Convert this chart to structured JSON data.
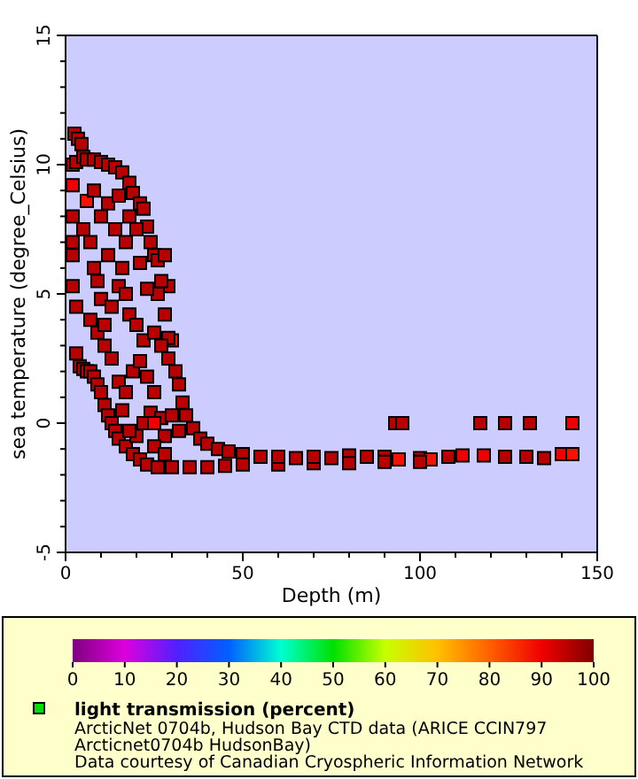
{
  "chart_data": {
    "type": "scatter",
    "xlabel": "Depth (m)",
    "ylabel": "sea temperature (degree_Celsius)",
    "clabel": "light transmission (percent)",
    "marker": "square",
    "grid": false,
    "xlim": [
      0,
      150
    ],
    "ylim": [
      -5,
      15
    ],
    "xticks": [
      0,
      {
        "value": 10,
        "label": null
      },
      {
        "value": 20,
        "label": null
      },
      {
        "value": 30,
        "label": null
      },
      {
        "value": 40,
        "label": null
      },
      50,
      {
        "value": 60,
        "label": null
      },
      {
        "value": 70,
        "label": null
      },
      {
        "value": 80,
        "label": null
      },
      {
        "value": 90,
        "label": null
      },
      100,
      {
        "value": 110,
        "label": null
      },
      {
        "value": 120,
        "label": null
      },
      {
        "value": 130,
        "label": null
      },
      {
        "value": 140,
        "label": null
      },
      150
    ],
    "yticks": [
      -5,
      {
        "value": -4,
        "label": null
      },
      {
        "value": -3,
        "label": null
      },
      {
        "value": -2,
        "label": null
      },
      {
        "value": -1,
        "label": null
      },
      0,
      {
        "value": 1,
        "label": null
      },
      {
        "value": 2,
        "label": null
      },
      {
        "value": 3,
        "label": null
      },
      {
        "value": 4,
        "label": null
      },
      5,
      {
        "value": 6,
        "label": null
      },
      {
        "value": 7,
        "label": null
      },
      {
        "value": 8,
        "label": null
      },
      {
        "value": 9,
        "label": null
      },
      10,
      {
        "value": 11,
        "label": null
      },
      {
        "value": 12,
        "label": null
      },
      {
        "value": 13,
        "label": null
      },
      {
        "value": 14,
        "label": null
      },
      15
    ],
    "clim": [
      0,
      100
    ],
    "cticks": [
      0,
      10,
      20,
      30,
      40,
      50,
      60,
      70,
      80,
      90,
      100
    ],
    "annotations": [
      "ArcticNet 0704b, Hudson Bay CTD data (ARICE CCIN797",
      "Arcticnet0704b HudsonBay)",
      "Data courtesy of Canadian Cryospheric Information Network"
    ],
    "series": [
      {
        "x": [
          2.5,
          3.5,
          4.5,
          2,
          3,
          5,
          6,
          8,
          10,
          12,
          14,
          16,
          18,
          19,
          21,
          22,
          23,
          24,
          25,
          26,
          28,
          29,
          27,
          28,
          26,
          30,
          29,
          31,
          32,
          33,
          34,
          36,
          38,
          40,
          43,
          46,
          50,
          2,
          2,
          2,
          2,
          2,
          3,
          3,
          4,
          5,
          6,
          7,
          8,
          9,
          10,
          11,
          12,
          13,
          14,
          15,
          17,
          19,
          21,
          23,
          26,
          30,
          35,
          40,
          45,
          50,
          60,
          70,
          6,
          5,
          7,
          8,
          9,
          10,
          7,
          9,
          11,
          13,
          15,
          12,
          14,
          16,
          17,
          18,
          20,
          22,
          19,
          21,
          23,
          25,
          24,
          22,
          20,
          18,
          16,
          15,
          17,
          27,
          28,
          30,
          32,
          25,
          28,
          13,
          11,
          10,
          8,
          12,
          15,
          18,
          20,
          17,
          21,
          23,
          25,
          27,
          29,
          25,
          55,
          60,
          65,
          70,
          75,
          80,
          85,
          90,
          94,
          100,
          103,
          108,
          112,
          118,
          124,
          130,
          135,
          140,
          143,
          80,
          90,
          100,
          93,
          95,
          117,
          124,
          131,
          143
        ],
        "values": [
          11.2,
          11.0,
          10.8,
          10.0,
          10.1,
          10.3,
          10.2,
          10.2,
          10.1,
          10.0,
          9.9,
          9.7,
          9.3,
          8.9,
          8.5,
          8.3,
          7.6,
          7.0,
          6.5,
          6.3,
          6.5,
          5.3,
          5.5,
          4.2,
          5.0,
          3.2,
          3.3,
          2.0,
          1.5,
          0.8,
          0.3,
          -0.2,
          -0.6,
          -0.8,
          -1.0,
          -1.1,
          -1.2,
          9.2,
          8.0,
          7.0,
          6.5,
          5.3,
          4.5,
          2.7,
          2.2,
          2.1,
          2.0,
          2.0,
          1.8,
          1.5,
          1.2,
          0.7,
          0.3,
          0.0,
          -0.3,
          -0.6,
          -0.9,
          -1.2,
          -1.4,
          -1.6,
          -1.7,
          -1.7,
          -1.7,
          -1.7,
          -1.65,
          -1.6,
          -1.6,
          -1.55,
          8.6,
          7.5,
          7.0,
          6.0,
          5.5,
          4.8,
          4.0,
          3.5,
          3.8,
          4.5,
          5.3,
          6.5,
          7.5,
          6.0,
          5.0,
          4.2,
          3.8,
          3.2,
          2.0,
          2.4,
          1.8,
          1.2,
          0.4,
          0.0,
          -0.5,
          -0.3,
          0.5,
          1.6,
          1.2,
          0.2,
          -0.5,
          0.3,
          -0.3,
          -0.9,
          -1.2,
          2.5,
          3.0,
          8.0,
          9.0,
          8.5,
          8.8,
          8.0,
          7.5,
          7.0,
          6.2,
          5.2,
          3.5,
          3.0,
          2.5,
          0.0,
          -1.3,
          -1.3,
          -1.35,
          -1.3,
          -1.35,
          -1.25,
          -1.3,
          -1.3,
          -1.4,
          -1.35,
          -1.4,
          -1.3,
          -1.25,
          -1.25,
          -1.3,
          -1.3,
          -1.35,
          -1.2,
          -1.2,
          -1.55,
          -1.5,
          -1.5,
          0,
          0,
          0,
          0,
          0,
          0
        ],
        "cvalues": [
          95,
          95,
          95,
          95,
          95,
          95,
          95,
          95,
          95,
          95,
          95,
          95,
          95,
          95,
          95,
          95,
          95,
          95,
          95,
          95,
          95,
          95,
          95,
          95,
          95,
          88,
          95,
          95,
          95,
          95,
          95,
          95,
          95,
          95,
          95,
          95,
          95,
          90,
          95,
          95,
          95,
          95,
          95,
          95,
          95,
          95,
          95,
          95,
          95,
          95,
          95,
          95,
          95,
          95,
          95,
          95,
          95,
          95,
          95,
          95,
          95,
          95,
          95,
          95,
          95,
          95,
          95,
          95,
          88,
          95,
          95,
          95,
          95,
          95,
          95,
          95,
          95,
          95,
          95,
          95,
          95,
          95,
          95,
          95,
          95,
          95,
          95,
          95,
          95,
          95,
          95,
          95,
          95,
          95,
          95,
          95,
          95,
          95,
          95,
          95,
          95,
          95,
          95,
          95,
          95,
          95,
          95,
          95,
          95,
          95,
          95,
          95,
          95,
          95,
          95,
          95,
          95,
          90,
          95,
          95,
          95,
          95,
          95,
          95,
          95,
          95,
          88,
          95,
          88,
          95,
          90,
          90,
          95,
          95,
          95,
          90,
          88,
          95,
          95,
          95,
          95,
          95,
          95,
          95,
          95,
          90
        ]
      }
    ]
  }
}
